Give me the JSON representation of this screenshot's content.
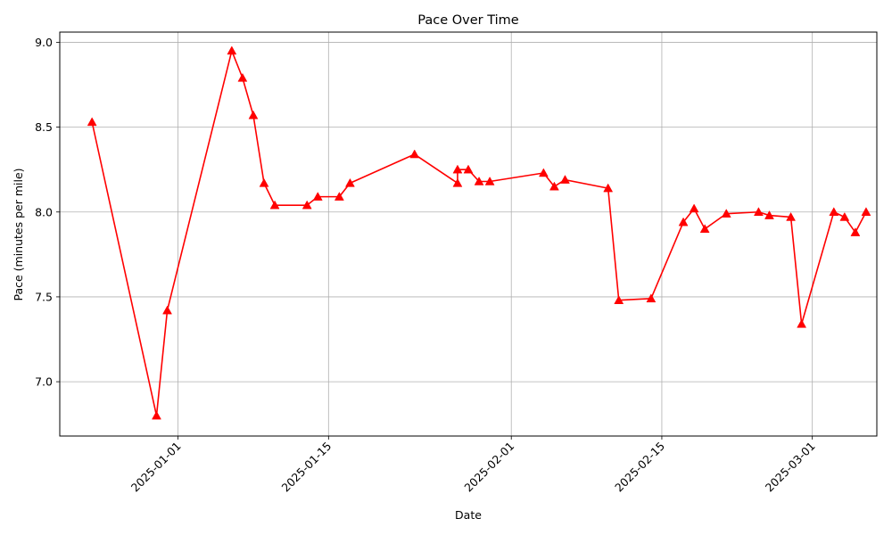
{
  "chart_data": {
    "type": "line",
    "title": "Pace Over Time",
    "xlabel": "Date",
    "ylabel": "Pace (minutes per mile)",
    "x_ticks": [
      "2025-01-01",
      "2025-01-15",
      "2025-02-01",
      "2025-02-15",
      "2025-03-01"
    ],
    "y_ticks": [
      "7.0",
      "7.5",
      "8.0",
      "8.5",
      "9.0"
    ],
    "xlim": [
      "2024-12-21",
      "2025-03-07"
    ],
    "ylim": [
      6.68,
      9.06
    ],
    "grid": true,
    "marker": "triangle",
    "color": "#ff0000",
    "series": [
      {
        "x": [
          "2024-12-24",
          "2024-12-30",
          "2024-12-31",
          "2025-01-06",
          "2025-01-07",
          "2025-01-08",
          "2025-01-09",
          "2025-01-10",
          "2025-01-13",
          "2025-01-14",
          "2025-01-16",
          "2025-01-17",
          "2025-01-23",
          "2025-01-27",
          "2025-01-27",
          "2025-01-28",
          "2025-01-29",
          "2025-01-30",
          "2025-02-04",
          "2025-02-05",
          "2025-02-06",
          "2025-02-10",
          "2025-02-11",
          "2025-02-14",
          "2025-02-17",
          "2025-02-18",
          "2025-02-19",
          "2025-02-21",
          "2025-02-24",
          "2025-02-25",
          "2025-02-27",
          "2025-02-28",
          "2025-03-03",
          "2025-03-04",
          "2025-03-05",
          "2025-03-06"
        ],
        "y": [
          8.53,
          6.8,
          7.42,
          8.95,
          8.79,
          8.57,
          8.17,
          8.04,
          8.04,
          8.09,
          8.09,
          8.17,
          8.34,
          8.17,
          8.25,
          8.25,
          8.18,
          8.18,
          8.23,
          8.15,
          8.19,
          8.14,
          7.48,
          7.49,
          7.94,
          8.02,
          7.9,
          7.99,
          8.0,
          7.98,
          7.97,
          7.34,
          8.0,
          7.97,
          7.88,
          8.0
        ]
      }
    ]
  }
}
